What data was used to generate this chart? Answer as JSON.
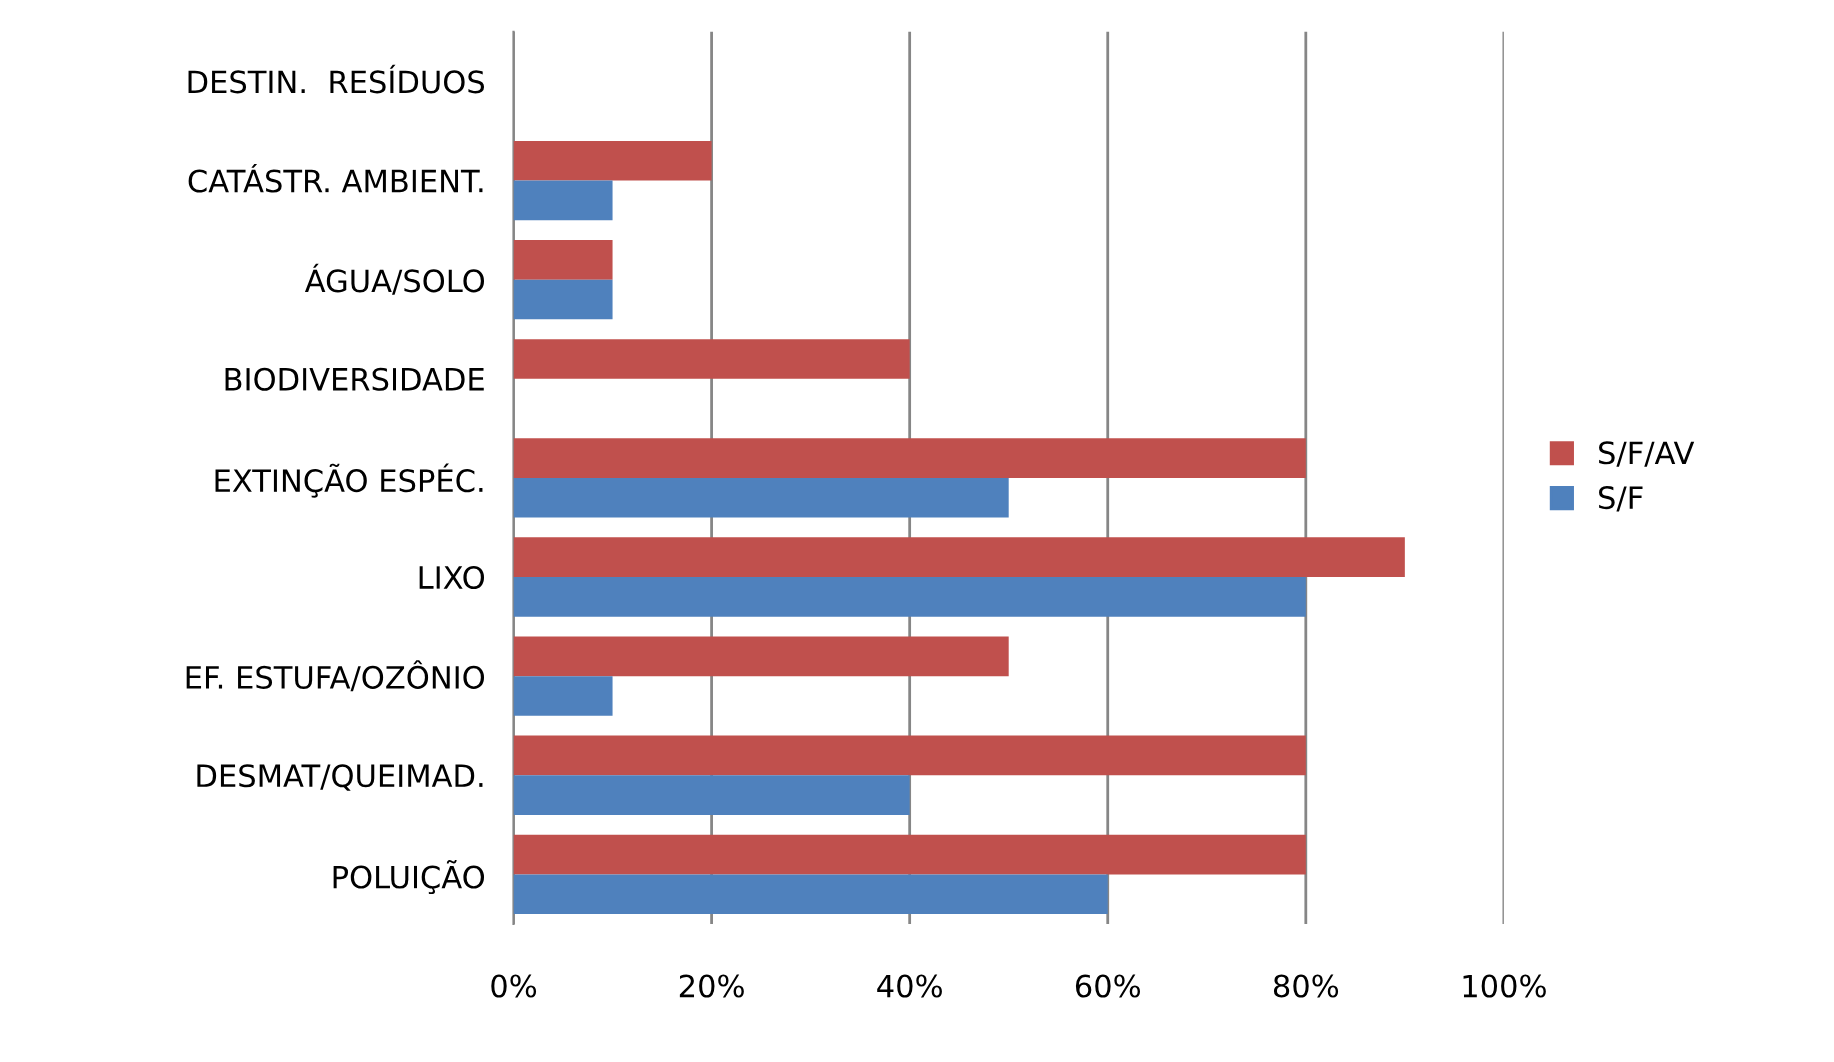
{
  "chart_data": {
    "type": "bar",
    "orientation": "horizontal",
    "categories": [
      "DESTIN.  RESÍDUOS",
      "CATÁSTR. AMBIENT.",
      "ÁGUA/SOLO",
      "BIODIVERSIDADE",
      "EXTINÇÃO ESPÉC.",
      "LIXO",
      "EF. ESTUFA/OZÔNIO",
      "DESMAT/QUEIMAD.",
      "POLUIÇÃO"
    ],
    "series": [
      {
        "name": "S/F/AV",
        "color": "#c0504d",
        "values": [
          0,
          20,
          10,
          40,
          80,
          90,
          50,
          80,
          80
        ]
      },
      {
        "name": "S/F",
        "color": "#4f81bd",
        "values": [
          0,
          10,
          10,
          0,
          50,
          80,
          10,
          40,
          60
        ]
      }
    ],
    "xlim": [
      0,
      100
    ],
    "xticks": [
      {
        "value": 0,
        "label": "0%"
      },
      {
        "value": 20,
        "label": "20%"
      },
      {
        "value": 40,
        "label": "40%"
      },
      {
        "value": 60,
        "label": "60%"
      },
      {
        "value": 80,
        "label": "80%"
      },
      {
        "value": 100,
        "label": "100%"
      }
    ],
    "grid": "x",
    "legend": "right"
  }
}
